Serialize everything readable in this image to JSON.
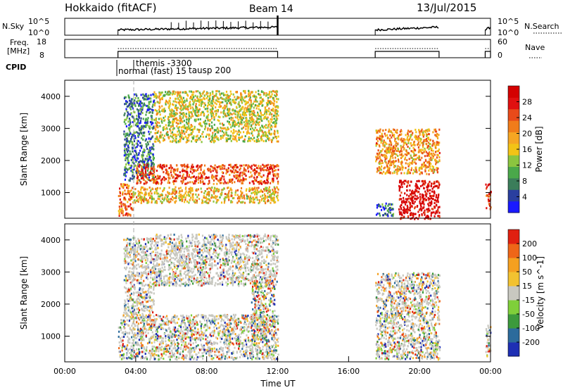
{
  "header": {
    "station": "Hokkaido (fitACF)",
    "beam": "Beam 14",
    "date": "13/Jul/2015"
  },
  "top_panels": {
    "nsky_label": "N.Sky",
    "nsky_ticks": [
      "10^5",
      "10^0"
    ],
    "nsearch_label": "N.Search",
    "nsearch_ticks": [
      "10^5",
      "10^0"
    ],
    "freq_label_1": "Freq.",
    "freq_label_2": "[MHz]",
    "freq_ticks": [
      "18",
      "8"
    ],
    "nave_label": "Nave",
    "nave_ticks": [
      "60",
      "0"
    ],
    "cpid_label": "CPID",
    "cpid_annotations": [
      "themis -3300",
      "normal (fast) 15",
      "tausp 200"
    ]
  },
  "chart_data": [
    {
      "type": "heatmap",
      "name": "power",
      "ylabel": "Slant Range [km]",
      "yticks": [
        "1000",
        "2000",
        "3000",
        "4000"
      ],
      "ylim": [
        200,
        4500
      ],
      "colorbar_label": "Power [dB]",
      "colorbar_ticks": [
        "4",
        "8",
        "12",
        "16",
        "20",
        "24",
        "28"
      ],
      "colorbar_colors": [
        "#1a1aff",
        "#2a3f9f",
        "#3b7d5a",
        "#4aa84a",
        "#8bc53f",
        "#f2c316",
        "#f5a623",
        "#f07c1a",
        "#e84a1a",
        "#e01010",
        "#d40000"
      ],
      "echo_regions": [
        {
          "t0": 3.0,
          "t1": 3.8,
          "r0": 300,
          "r1": 1300,
          "level": 0.7
        },
        {
          "t0": 3.3,
          "t1": 5.0,
          "r0": 1400,
          "r1": 4100,
          "level": 0.22
        },
        {
          "t0": 3.8,
          "t1": 12.0,
          "r0": 700,
          "r1": 1200,
          "level": 0.55
        },
        {
          "t0": 4.0,
          "t1": 12.0,
          "r0": 1300,
          "r1": 1900,
          "level": 0.78
        },
        {
          "t0": 5.0,
          "t1": 12.0,
          "r0": 2600,
          "r1": 4200,
          "level": 0.48
        },
        {
          "t0": 17.5,
          "t1": 21.1,
          "r0": 1600,
          "r1": 3000,
          "level": 0.62
        },
        {
          "t0": 18.8,
          "t1": 21.1,
          "r0": 200,
          "r1": 1400,
          "level": 0.95
        },
        {
          "t0": 17.5,
          "t1": 18.5,
          "r0": 300,
          "r1": 700,
          "level": 0.2
        },
        {
          "t0": 23.7,
          "t1": 24.0,
          "r0": 500,
          "r1": 1300,
          "level": 0.8
        }
      ]
    },
    {
      "type": "heatmap",
      "name": "velocity",
      "xlabel": "Time UT",
      "xticks": [
        "00:00",
        "04:00",
        "08:00",
        "12:00",
        "16:00",
        "20:00",
        "00:00"
      ],
      "xlim": [
        0,
        24
      ],
      "ylabel": "Slant Range [km]",
      "yticks": [
        "1000",
        "2000",
        "3000",
        "4000"
      ],
      "ylim": [
        200,
        4500
      ],
      "colorbar_label": "Velocity [m s^-1]",
      "colorbar_ticks": [
        "200",
        "100",
        "50",
        "15",
        "-15",
        "-50",
        "-100",
        "-200"
      ],
      "colorbar_colors": [
        "#1e2fb4",
        "#2c6b9c",
        "#3c9a3c",
        "#7fcf3a",
        "#c8c8c0",
        "#f2c230",
        "#f5a020",
        "#ee6618",
        "#e02010"
      ],
      "echo_regions": [
        {
          "t0": 3.0,
          "t1": 12.0,
          "r0": 300,
          "r1": 1700,
          "level": 0.5
        },
        {
          "t0": 3.3,
          "t1": 5.0,
          "r0": 1700,
          "r1": 4100,
          "level": 0.6
        },
        {
          "t0": 5.0,
          "t1": 12.0,
          "r0": 2600,
          "r1": 4200,
          "level": 0.65
        },
        {
          "t0": 10.5,
          "t1": 11.8,
          "r0": 900,
          "r1": 2800,
          "level": 0.3
        },
        {
          "t0": 17.5,
          "t1": 21.1,
          "r0": 300,
          "r1": 3000,
          "level": 0.45
        },
        {
          "t0": 23.7,
          "t1": 24.0,
          "r0": 400,
          "r1": 1400,
          "level": 0.5
        }
      ]
    }
  ],
  "scan_intervals": [
    [
      3.0,
      12.0
    ],
    [
      17.5,
      21.1
    ],
    [
      23.7,
      24.0
    ]
  ]
}
